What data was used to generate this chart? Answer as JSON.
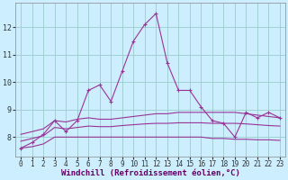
{
  "xlabel": "Windchill (Refroidissement éolien,°C)",
  "background_color": "#cceeff",
  "plot_bg_color": "#cceeff",
  "grid_color": "#99cccc",
  "line_color": "#993399",
  "xlim": [
    -0.5,
    23.5
  ],
  "ylim": [
    7.3,
    12.9
  ],
  "xticks": [
    0,
    1,
    2,
    3,
    4,
    5,
    6,
    7,
    8,
    9,
    10,
    11,
    12,
    13,
    14,
    15,
    16,
    17,
    18,
    19,
    20,
    21,
    22,
    23
  ],
  "yticks": [
    8,
    9,
    10,
    11,
    12
  ],
  "series_main": {
    "x": [
      0,
      1,
      2,
      3,
      4,
      5,
      6,
      7,
      8,
      9,
      10,
      11,
      12,
      13,
      14,
      15,
      16,
      17,
      18,
      19,
      20,
      21,
      22,
      23
    ],
    "y": [
      7.6,
      7.8,
      8.1,
      8.6,
      8.2,
      8.6,
      9.7,
      9.9,
      9.3,
      10.4,
      11.5,
      12.1,
      12.5,
      10.7,
      9.7,
      9.7,
      9.1,
      8.6,
      8.5,
      8.0,
      8.9,
      8.7,
      8.9,
      8.7
    ]
  },
  "series_upper": {
    "x": [
      0,
      1,
      2,
      3,
      4,
      5,
      6,
      7,
      8,
      9,
      10,
      11,
      12,
      13,
      14,
      15,
      16,
      17,
      18,
      19,
      20,
      21,
      22,
      23
    ],
    "y": [
      8.1,
      8.2,
      8.3,
      8.6,
      8.55,
      8.65,
      8.7,
      8.65,
      8.65,
      8.7,
      8.75,
      8.8,
      8.85,
      8.85,
      8.9,
      8.9,
      8.9,
      8.9,
      8.9,
      8.9,
      8.85,
      8.8,
      8.75,
      8.7
    ]
  },
  "series_mid": {
    "x": [
      0,
      1,
      2,
      3,
      4,
      5,
      6,
      7,
      8,
      9,
      10,
      11,
      12,
      13,
      14,
      15,
      16,
      17,
      18,
      19,
      20,
      21,
      22,
      23
    ],
    "y": [
      7.85,
      7.95,
      8.05,
      8.35,
      8.3,
      8.35,
      8.4,
      8.38,
      8.38,
      8.42,
      8.45,
      8.48,
      8.5,
      8.5,
      8.52,
      8.52,
      8.52,
      8.5,
      8.5,
      8.5,
      8.48,
      8.45,
      8.42,
      8.4
    ]
  },
  "series_lower": {
    "x": [
      0,
      1,
      2,
      3,
      4,
      5,
      6,
      7,
      8,
      9,
      10,
      11,
      12,
      13,
      14,
      15,
      16,
      17,
      18,
      19,
      20,
      21,
      22,
      23
    ],
    "y": [
      7.6,
      7.65,
      7.75,
      8.0,
      8.0,
      8.0,
      8.0,
      8.0,
      8.0,
      8.0,
      8.0,
      8.0,
      8.0,
      8.0,
      8.0,
      8.0,
      8.0,
      7.95,
      7.95,
      7.92,
      7.92,
      7.9,
      7.9,
      7.88
    ]
  },
  "xlabel_fontsize": 6.5,
  "tick_fontsize": 5.5
}
